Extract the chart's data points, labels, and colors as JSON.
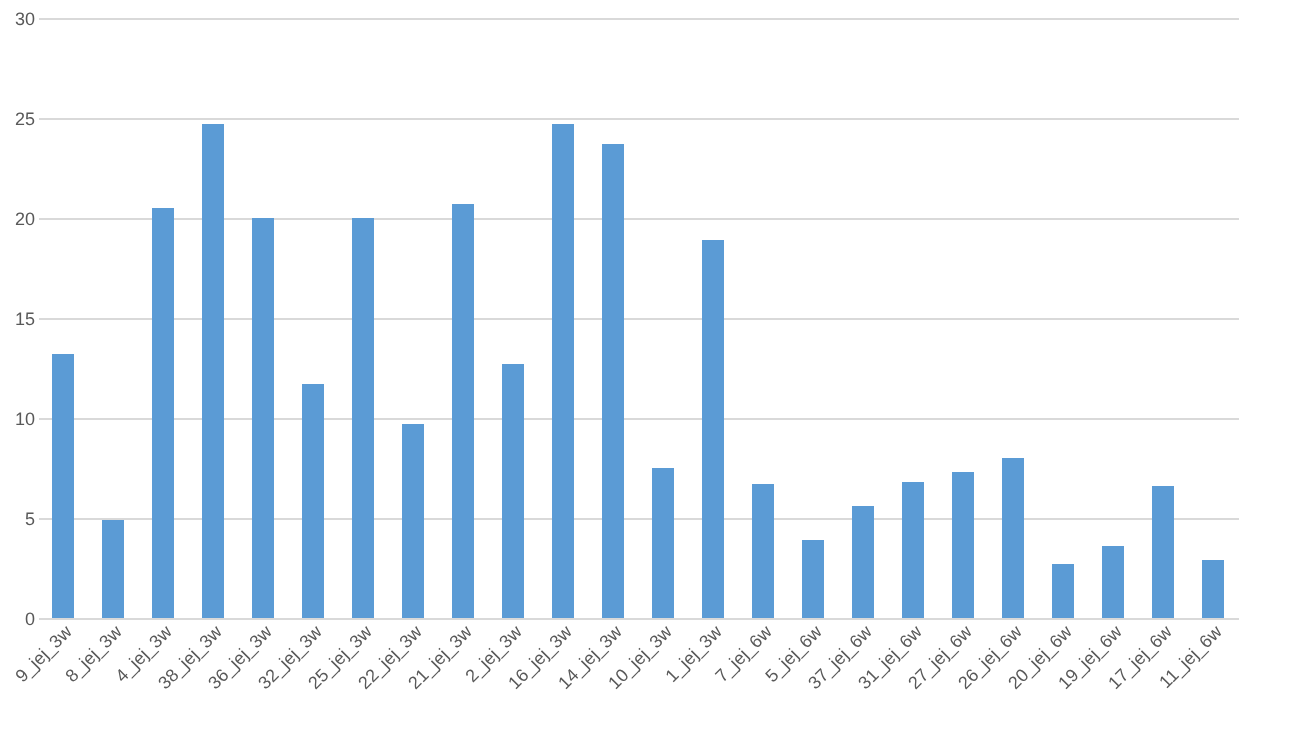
{
  "chart_data": {
    "type": "bar",
    "categories": [
      "9_jej_3w",
      "8_jej_3w",
      "4_jej_3w",
      "38_jej_3w",
      "36_jej_3w",
      "32_jej_3w",
      "25_jej_3w",
      "22_jej_3w",
      "21_jej_3w",
      "2_jej_3w",
      "16_jej_3w",
      "14_jej_3w",
      "10_jej_3w",
      "1_jej_3w",
      "7_jej_6w",
      "5_jej_6w",
      "37_jej_6w",
      "31_jej_6w",
      "27_jej_6w",
      "26_jej_6w",
      "20_jej_6w",
      "19_jej_6w",
      "17_jej_6w",
      "11_jej_6w"
    ],
    "values": [
      13.2,
      4.9,
      20.5,
      24.7,
      20,
      11.7,
      20,
      9.7,
      20.7,
      12.7,
      24.7,
      23.7,
      7.5,
      18.9,
      6.7,
      3.9,
      5.6,
      6.8,
      7.3,
      8.0,
      2.7,
      3.6,
      6.6,
      2.9
    ],
    "color": "#5b9bd5",
    "ylim": [
      0,
      30
    ],
    "yticks": [
      0,
      5,
      10,
      15,
      20,
      25,
      30
    ],
    "grid": "y"
  }
}
